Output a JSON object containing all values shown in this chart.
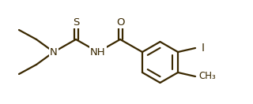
{
  "bg_color": "#ffffff",
  "line_color": "#3a2800",
  "bond_lw": 1.6,
  "fs": 9.5,
  "atoms": {
    "N": "N",
    "S": "S",
    "NH": "NH",
    "O": "O",
    "I": "I",
    "CH3": "CH₃"
  }
}
